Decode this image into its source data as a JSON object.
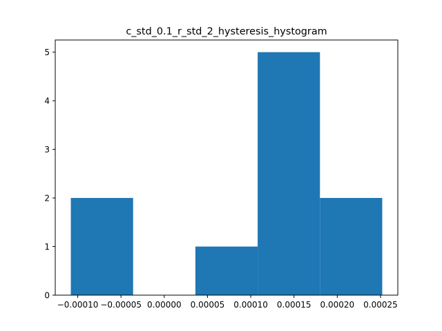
{
  "chart_data": {
    "type": "bar",
    "title": "c_std_0.1_r_std_2_hysteresis_hystogram",
    "xlabel": "",
    "ylabel": "",
    "bins": [
      {
        "x0": -0.000108,
        "x1": -3.6e-05,
        "count": 2
      },
      {
        "x0": -3.6e-05,
        "x1": 3.6e-05,
        "count": 0
      },
      {
        "x0": 3.6e-05,
        "x1": 0.000108,
        "count": 1
      },
      {
        "x0": 0.000108,
        "x1": 0.00018,
        "count": 5
      },
      {
        "x0": 0.00018,
        "x1": 0.000252,
        "count": 2
      }
    ],
    "xlim": [
      -0.000126,
      0.00027
    ],
    "ylim": [
      0,
      5.25
    ],
    "xticks": [
      -0.0001,
      -5e-05,
      0.0,
      5e-05,
      0.0001,
      0.00015,
      0.0002,
      0.00025
    ],
    "xtick_labels": [
      "−0.00010",
      "−0.00005",
      "0.00000",
      "0.00005",
      "0.00010",
      "0.00015",
      "0.00020",
      "0.00025"
    ],
    "yticks": [
      0,
      1,
      2,
      3,
      4,
      5
    ],
    "ytick_labels": [
      "0",
      "1",
      "2",
      "3",
      "4",
      "5"
    ],
    "bar_color": "#1f77b4",
    "grid": false
  }
}
